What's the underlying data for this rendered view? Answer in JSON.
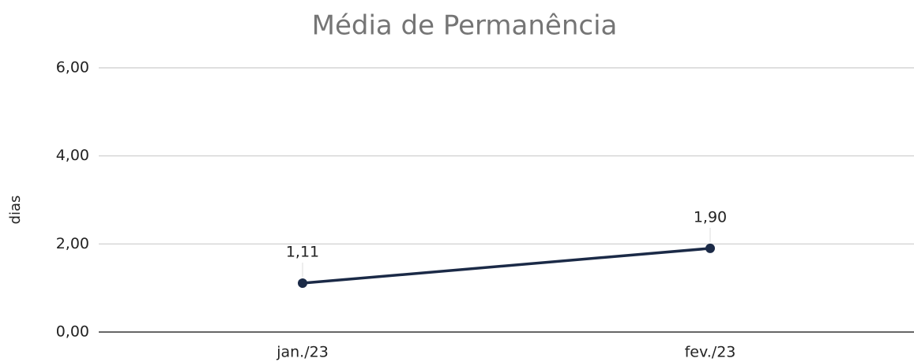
{
  "chart_data": {
    "type": "line",
    "title": "Média de Permanência",
    "y_label": "dias",
    "categories": [
      "jan./23",
      "fev./23"
    ],
    "series": [
      {
        "name": "dias",
        "color": "#1b2a47",
        "values": [
          1.11,
          1.9
        ],
        "value_labels": [
          "1,11",
          "1,90"
        ]
      }
    ],
    "ylim": [
      0,
      6
    ],
    "yticks": [
      {
        "value": 0,
        "label": "0,00"
      },
      {
        "value": 2,
        "label": "2,00"
      },
      {
        "value": 4,
        "label": "4,00"
      },
      {
        "value": 6,
        "label": "6,00"
      }
    ],
    "grid": true,
    "legend": false
  }
}
